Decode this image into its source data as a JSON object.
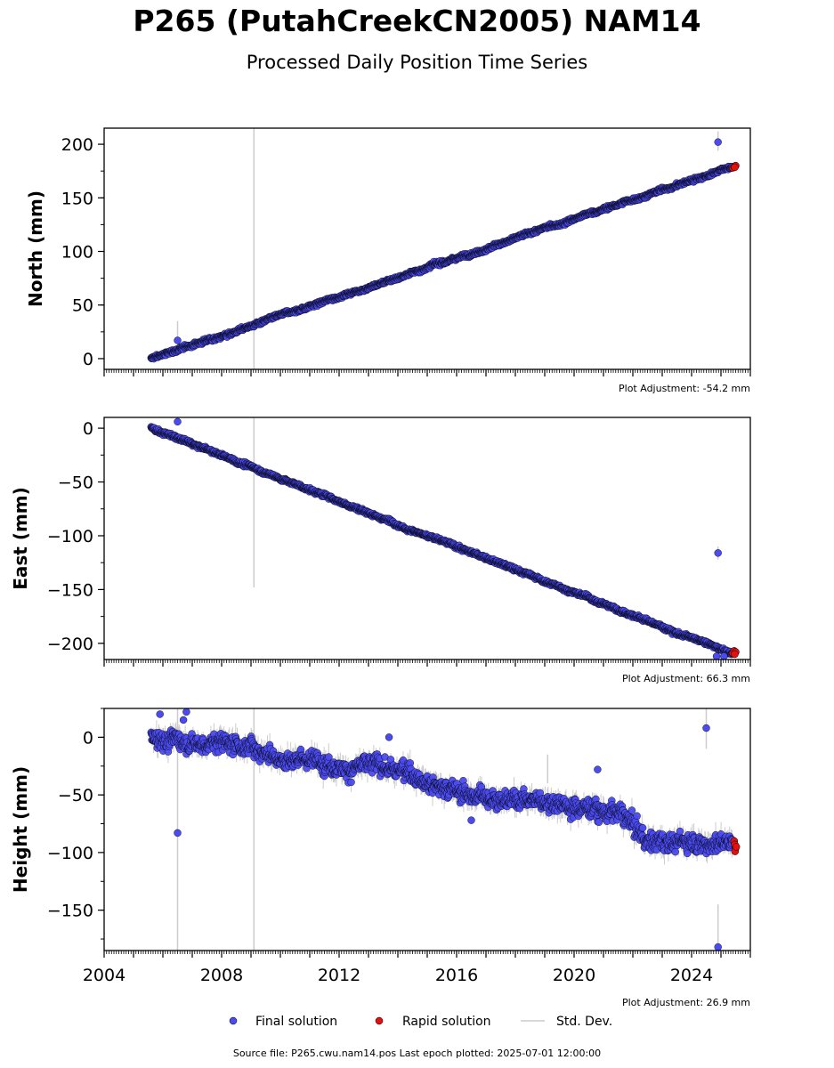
{
  "header": {
    "title": "P265 (PutahCreekCN2005) NAM14",
    "subtitle": "Processed Daily Position Time Series"
  },
  "footer": {
    "source_text": "Source file: P265.cwu.nam14.pos  Last epoch plotted: 2025-07-01 12:00:00"
  },
  "legend": {
    "final_label": "Final solution",
    "rapid_label": "Rapid solution",
    "std_label": "Std. Dev."
  },
  "colors": {
    "final": "#4b4bf0",
    "rapid": "#e41010",
    "std": "#cccccc",
    "edge": "#000000"
  },
  "chart_data": [
    {
      "type": "scatter",
      "panel": "north",
      "ylabel": "North (mm)",
      "adjustment_label": "Plot Adjustment: -54.2 mm",
      "xlim": [
        2004,
        2026
      ],
      "ylim": [
        -10,
        215
      ],
      "yticks": [
        0,
        50,
        100,
        150,
        200
      ],
      "trend": {
        "start": [
          2005.6,
          0
        ],
        "end": [
          2025.4,
          179
        ]
      },
      "noise_mm": 2,
      "seasonal": [],
      "outliers": [
        [
          2006.5,
          17
        ],
        [
          2024.9,
          202
        ]
      ],
      "std_bars": [
        [
          2009.1,
          -10,
          215
        ],
        [
          2006.5,
          8,
          35
        ],
        [
          2024.9,
          194,
          212
        ]
      ],
      "rapid_points": [
        [
          2025.4,
          178
        ],
        [
          2025.45,
          179
        ],
        [
          2025.5,
          180
        ],
        [
          2025.47,
          178.5
        ]
      ]
    },
    {
      "type": "scatter",
      "panel": "east",
      "ylabel": "East (mm)",
      "adjustment_label": "Plot Adjustment: 66.3 mm",
      "xlim": [
        2004,
        2026
      ],
      "ylim": [
        -215,
        10
      ],
      "yticks": [
        0,
        -50,
        -100,
        -150,
        -200
      ],
      "trend": {
        "start": [
          2005.6,
          0
        ],
        "end": [
          2025.4,
          -210
        ]
      },
      "noise_mm": 2,
      "seasonal": [],
      "outliers": [
        [
          2006.5,
          6
        ],
        [
          2024.9,
          -116
        ],
        [
          2024.85,
          -212
        ],
        [
          2025.1,
          -212
        ]
      ],
      "std_bars": [
        [
          2009.1,
          -148,
          10
        ],
        [
          2024.9,
          -110,
          -122
        ]
      ],
      "rapid_points": [
        [
          2025.4,
          -209
        ],
        [
          2025.45,
          -207
        ],
        [
          2025.5,
          -208
        ],
        [
          2025.47,
          -210
        ]
      ]
    },
    {
      "type": "scatter",
      "panel": "height",
      "ylabel": "Height (mm)",
      "adjustment_label": "Plot Adjustment: 26.9 mm",
      "xlabel": "",
      "xlim": [
        2004,
        2026
      ],
      "ylim": [
        -185,
        25
      ],
      "yticks": [
        0,
        -50,
        -100,
        -150
      ],
      "xticks": [
        2004,
        2008,
        2012,
        2016,
        2020,
        2024
      ],
      "trend_points": [
        [
          2005.6,
          0
        ],
        [
          2008.5,
          -5
        ],
        [
          2011,
          -20
        ],
        [
          2014,
          -28
        ],
        [
          2016.5,
          -50
        ],
        [
          2019.5,
          -55
        ],
        [
          2021.5,
          -65
        ],
        [
          2022.5,
          -90
        ],
        [
          2025.4,
          -90
        ]
      ],
      "noise_mm": 9,
      "seasonal": [],
      "outliers": [
        [
          2006.5,
          -83
        ],
        [
          2005.9,
          20
        ],
        [
          2006.8,
          22
        ],
        [
          2006.7,
          15
        ],
        [
          2024.5,
          8
        ],
        [
          2024.9,
          -182
        ],
        [
          2016.5,
          -72
        ],
        [
          2013.7,
          0
        ],
        [
          2020.8,
          -28
        ]
      ],
      "std_bars": [
        [
          2006.5,
          -185,
          25
        ],
        [
          2009.1,
          -185,
          25
        ],
        [
          2024.5,
          -10,
          25
        ],
        [
          2024.9,
          -185,
          -145
        ],
        [
          2019.1,
          -15,
          -40
        ]
      ],
      "rapid_points": [
        [
          2025.45,
          -90
        ],
        [
          2025.47,
          -93
        ],
        [
          2025.5,
          -96
        ],
        [
          2025.48,
          -99
        ],
        [
          2025.52,
          -95
        ]
      ]
    }
  ]
}
